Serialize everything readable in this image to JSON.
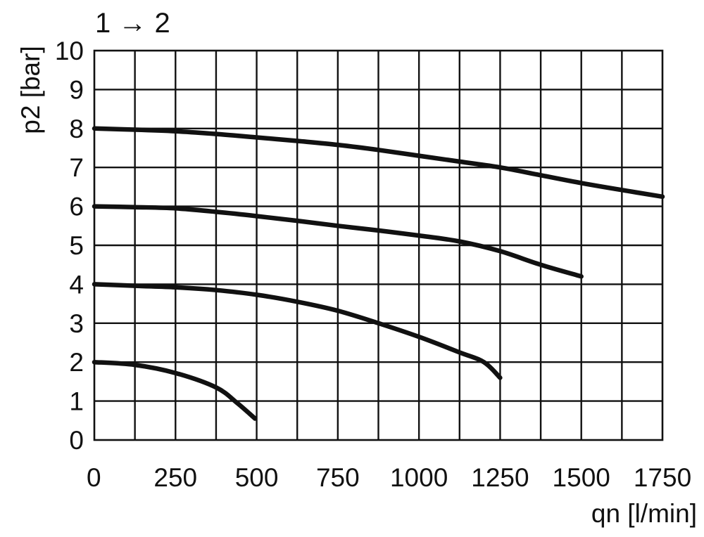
{
  "chart_data": {
    "type": "line",
    "title": "1 → 2",
    "xlabel": "qn [l/min]",
    "ylabel": "p2 [bar]",
    "xlim": [
      0,
      1750
    ],
    "ylim": [
      0,
      10
    ],
    "x_ticks": [
      "0",
      "250",
      "500",
      "750",
      "1000",
      "1250",
      "1500",
      "1750"
    ],
    "y_ticks": [
      "0",
      "1",
      "2",
      "3",
      "4",
      "5",
      "6",
      "7",
      "8",
      "9",
      "10"
    ],
    "x_grid_step": 125,
    "y_grid_step": 1,
    "grid": true,
    "legend": "none",
    "line_color": "#111111",
    "series": [
      {
        "x": [
          0,
          125,
          250,
          375,
          500,
          625,
          750,
          875,
          1000,
          1125,
          1250,
          1375,
          1500,
          1625,
          1750
        ],
        "y": [
          8.0,
          7.97,
          7.93,
          7.86,
          7.77,
          7.68,
          7.58,
          7.45,
          7.3,
          7.15,
          7.0,
          6.8,
          6.6,
          6.42,
          6.25
        ]
      },
      {
        "x": [
          0,
          125,
          250,
          375,
          500,
          625,
          750,
          875,
          1000,
          1125,
          1250,
          1375,
          1500
        ],
        "y": [
          6.0,
          5.98,
          5.95,
          5.86,
          5.75,
          5.63,
          5.5,
          5.38,
          5.25,
          5.1,
          4.85,
          4.5,
          4.2
        ]
      },
      {
        "x": [
          0,
          125,
          250,
          375,
          500,
          625,
          750,
          875,
          1000,
          1125,
          1200,
          1250
        ],
        "y": [
          4.0,
          3.96,
          3.92,
          3.85,
          3.73,
          3.55,
          3.32,
          3.0,
          2.65,
          2.25,
          2.0,
          1.6
        ]
      },
      {
        "x": [
          0,
          125,
          250,
          375,
          440,
          495
        ],
        "y": [
          2.0,
          1.93,
          1.72,
          1.35,
          0.95,
          0.55
        ]
      }
    ]
  }
}
